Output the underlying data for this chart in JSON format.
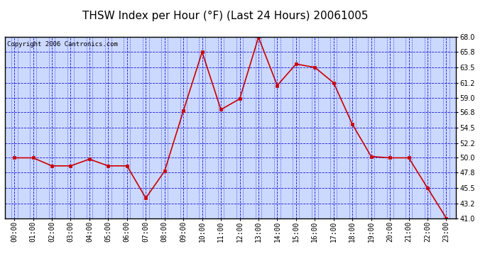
{
  "title": "THSW Index per Hour (°F) (Last 24 Hours) 20061005",
  "copyright": "Copyright 2006 Cantronics.com",
  "hour_labels": [
    "00:00",
    "01:00",
    "02:00",
    "03:00",
    "04:00",
    "05:00",
    "06:00",
    "07:00",
    "08:00",
    "09:00",
    "10:00",
    "11:00",
    "12:00",
    "13:00",
    "14:00",
    "15:00",
    "16:00",
    "17:00",
    "18:00",
    "19:00",
    "20:00",
    "21:00",
    "22:00",
    "23:00"
  ],
  "values": [
    50.0,
    50.0,
    48.8,
    48.8,
    49.8,
    48.8,
    48.8,
    44.0,
    48.0,
    57.0,
    65.8,
    57.2,
    58.8,
    68.0,
    60.8,
    64.0,
    63.5,
    61.2,
    55.0,
    50.2,
    50.0,
    50.0,
    45.5,
    41.0
  ],
  "ylim": [
    41.0,
    68.0
  ],
  "yticks": [
    41.0,
    43.2,
    45.5,
    47.8,
    50.0,
    52.2,
    54.5,
    56.8,
    59.0,
    61.2,
    63.5,
    65.8,
    68.0
  ],
  "line_color": "#cc0000",
  "marker_color": "#cc0000",
  "bg_color": "#ccd9ff",
  "grid_color": "#0000cc",
  "title_color": "#000000",
  "border_color": "#000000",
  "title_fontsize": 11,
  "copyright_fontsize": 6.5,
  "tick_fontsize": 7
}
